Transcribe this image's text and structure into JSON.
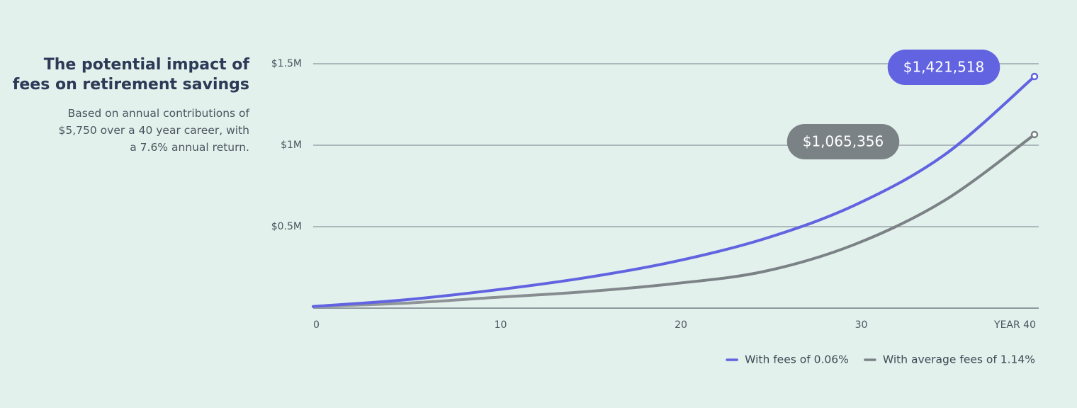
{
  "chart_data": {
    "type": "line",
    "title": "The potential impact of fees on retirement savings",
    "subtitle": "Based on annual contributions of $5,750 over a 40 year career, with a 7.6% annual return.",
    "x": [
      0,
      5,
      10,
      15,
      20,
      25,
      30,
      35,
      40
    ],
    "xlim": [
      0,
      40
    ],
    "xticks": [
      0,
      10,
      20,
      30,
      {
        "value": 40,
        "label": "YEAR 40"
      }
    ],
    "ylim": [
      0,
      1500000
    ],
    "yticks": [
      {
        "value": 500000,
        "label": "$0.5M"
      },
      {
        "value": 1000000,
        "label": "$1M"
      },
      {
        "value": 1500000,
        "label": "$1.5M"
      }
    ],
    "grid": true,
    "legend": "bottom-right",
    "series": [
      {
        "name": "With fees of 0.06%",
        "color": "#6163e0",
        "values": [
          10000,
          50000,
          110000,
          185000,
          285000,
          425000,
          630000,
          940000,
          1421518
        ],
        "value_labels": [
          null,
          null,
          null,
          null,
          null,
          null,
          null,
          null,
          "$1,421,518"
        ]
      },
      {
        "name": "With average fees of 1.14%",
        "color": "#7b8286",
        "values": [
          10000,
          30000,
          65000,
          100000,
          150000,
          225000,
          390000,
          660000,
          1065356
        ],
        "value_labels": [
          null,
          null,
          null,
          null,
          null,
          null,
          null,
          null,
          "$1,065,356"
        ]
      }
    ]
  }
}
